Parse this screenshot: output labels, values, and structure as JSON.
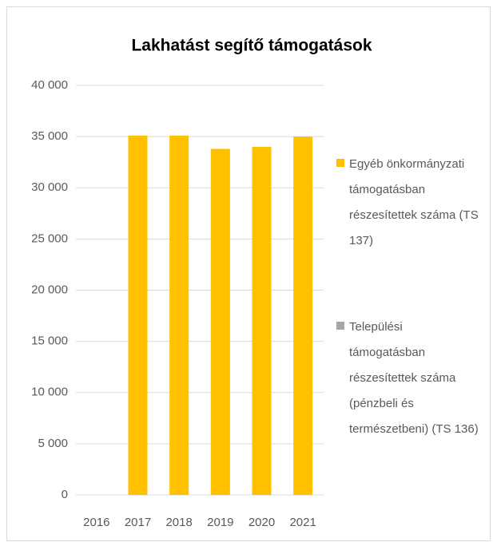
{
  "chart_data": {
    "type": "bar",
    "stacked": true,
    "title": "Lakhatást segítő támogatások",
    "categories": [
      "2016",
      "2017",
      "2018",
      "2019",
      "2020",
      "2021"
    ],
    "series": [
      {
        "name": "Egyéb önkormányzati támogatásban részesítettek száma (TS 137)",
        "color": "#ffc000",
        "values": [
          null,
          35100,
          35100,
          33800,
          34000,
          35000
        ]
      },
      {
        "name": "Települési támogatásban részesítettek száma (pénzbeli és természetbeni) (TS 136)",
        "color": "#a5a5a5",
        "values": [
          null,
          null,
          null,
          null,
          null,
          null
        ]
      }
    ],
    "ylim": [
      0,
      40000
    ],
    "yticks": [
      0,
      {
        "value": 5000,
        "label": "5 000"
      },
      {
        "value": 10000,
        "label": "10 000"
      },
      {
        "value": 15000,
        "label": "15 000"
      },
      {
        "value": 20000,
        "label": "20 000"
      },
      {
        "value": 25000,
        "label": "25 000"
      },
      {
        "value": 30000,
        "label": "30 000"
      },
      {
        "value": 35000,
        "label": "35 000"
      },
      {
        "value": 40000,
        "label": "40 000"
      }
    ],
    "grid": true,
    "legend": "right"
  }
}
